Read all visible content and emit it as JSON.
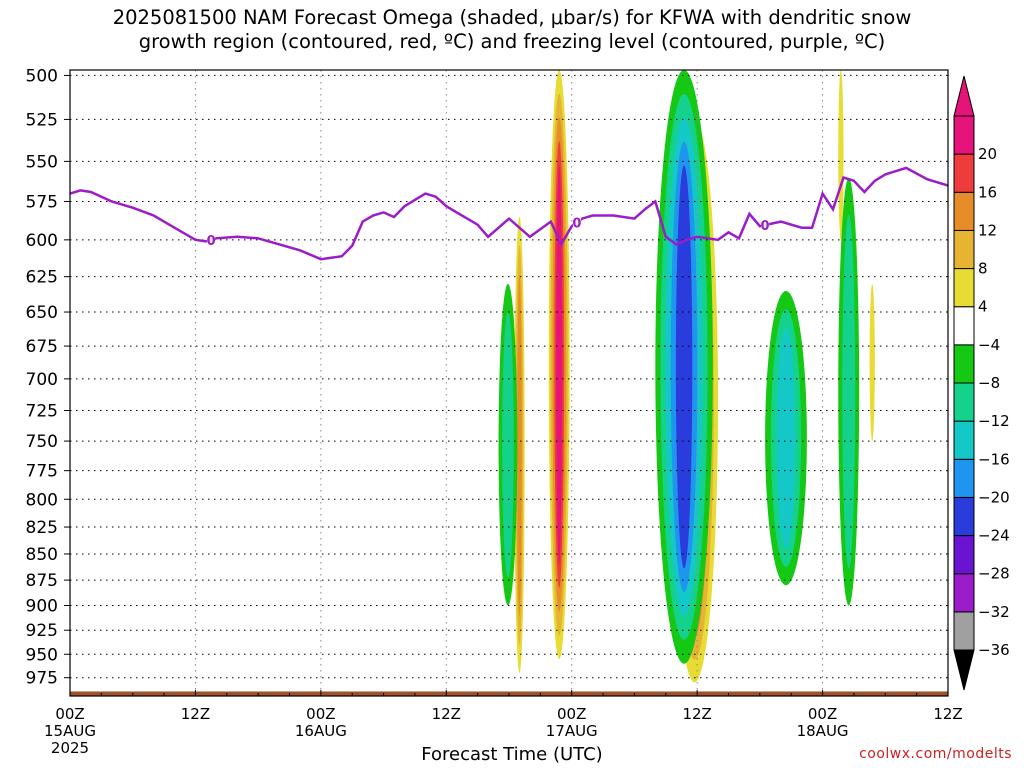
{
  "title_line1": "2025081500 NAM Forecast Omega (shaded, μbar/s) for KFWA with dendritic snow",
  "title_line2": "growth region (contoured, red, ºC) and freezing level (contoured, purple, ºC)",
  "credit": "coolwx.com/modelts",
  "chart_data": {
    "type": "heatmap",
    "title": "2025081500 NAM Forecast Omega (shaded, μbar/s) for KFWA with dendritic snow growth region (contoured, red, ºC) and freezing level (contoured, purple, ºC)",
    "xlabel": "Forecast Time (UTC)",
    "ylabel": "",
    "x_ticks": [
      {
        "hour": 0,
        "label": "00Z",
        "sub1": "15AUG",
        "sub2": "2025"
      },
      {
        "hour": 12,
        "label": "12Z",
        "sub1": "",
        "sub2": ""
      },
      {
        "hour": 24,
        "label": "00Z",
        "sub1": "16AUG",
        "sub2": ""
      },
      {
        "hour": 36,
        "label": "12Z",
        "sub1": "",
        "sub2": ""
      },
      {
        "hour": 48,
        "label": "00Z",
        "sub1": "17AUG",
        "sub2": ""
      },
      {
        "hour": 60,
        "label": "12Z",
        "sub1": "",
        "sub2": ""
      },
      {
        "hour": 72,
        "label": "00Z",
        "sub1": "18AUG",
        "sub2": ""
      },
      {
        "hour": 84,
        "label": "12Z",
        "sub1": "",
        "sub2": ""
      }
    ],
    "xlim": [
      0,
      84
    ],
    "y_ticks": [
      500,
      525,
      550,
      575,
      600,
      625,
      650,
      675,
      700,
      725,
      750,
      775,
      800,
      825,
      850,
      875,
      900,
      925,
      950,
      975
    ],
    "ylim": [
      497,
      995
    ],
    "y_scale": "log",
    "grid": true,
    "colorbar": {
      "levels": [
        -36,
        -32,
        -28,
        -24,
        -20,
        -16,
        -12,
        -8,
        -4,
        4,
        8,
        12,
        16,
        20
      ],
      "colors": [
        "#a0a0a0",
        "#9b1cc8",
        "#6a14d2",
        "#2a3cdc",
        "#1e96f0",
        "#14c8c8",
        "#14d28c",
        "#14c814",
        "#ffffff",
        "#e6dc32",
        "#e6b432",
        "#e68c28",
        "#ee3c3c",
        "#e6147a"
      ],
      "low_color": "#000000",
      "high_color": "#e6147a"
    },
    "freezing_level": {
      "color": "#9b1cc8",
      "label": "0",
      "label_hours": [
        13.5,
        48.5,
        66.5
      ],
      "hours": [
        0,
        1,
        2,
        4,
        6,
        8,
        10,
        12,
        13,
        14,
        16,
        18,
        20,
        22,
        24,
        26,
        27,
        28,
        29,
        30,
        31,
        32,
        33,
        34,
        35,
        36,
        37,
        38,
        39,
        40,
        42,
        44,
        46,
        47,
        48,
        49,
        50,
        52,
        54,
        55,
        56,
        57,
        58,
        59,
        60,
        62,
        63,
        64,
        65,
        66,
        68,
        70,
        71,
        72,
        73,
        74,
        75,
        76,
        77,
        78,
        80,
        82,
        84
      ],
      "pressure": [
        570,
        568,
        569,
        575,
        579,
        584,
        592,
        600,
        601,
        599,
        598,
        599,
        603,
        607,
        613,
        611,
        604,
        588,
        584,
        582,
        585,
        578,
        574,
        570,
        572,
        578,
        582,
        586,
        590,
        598,
        586,
        598,
        588,
        603,
        591,
        586,
        584,
        584,
        586,
        580,
        575,
        598,
        603,
        600,
        598,
        600,
        595,
        599,
        583,
        591,
        588,
        592,
        592,
        570,
        580,
        560,
        562,
        569,
        562,
        558,
        554,
        561,
        565
      ]
    },
    "snow_growth_region": "none",
    "omega_regions": [
      {
        "hour_start": 45.8,
        "hour_end": 47.8,
        "p_top": 497,
        "p_bottom": 955,
        "max_ubar_s": 24
      },
      {
        "hour_start": 57.5,
        "hour_end": 62.0,
        "p_top": 525,
        "p_bottom": 980,
        "max_ubar_s": 24
      },
      {
        "hour_start": 42.5,
        "hour_end": 43.5,
        "p_top": 585,
        "p_bottom": 970,
        "max_ubar_s": 12
      },
      {
        "hour_start": 73.5,
        "hour_end": 74.0,
        "p_top": 497,
        "p_bottom": 600,
        "max_ubar_s": 6
      },
      {
        "hour_start": 76.5,
        "hour_end": 77.0,
        "p_top": 630,
        "p_bottom": 750,
        "max_ubar_s": 6
      },
      {
        "hour_start": 41.0,
        "hour_end": 42.8,
        "p_top": 630,
        "p_bottom": 900,
        "min_ubar_s": -8
      },
      {
        "hour_start": 56.0,
        "hour_end": 61.5,
        "p_top": 497,
        "p_bottom": 960,
        "min_ubar_s": -20
      },
      {
        "hour_start": 66.5,
        "hour_end": 70.5,
        "p_top": 635,
        "p_bottom": 880,
        "min_ubar_s": -12
      },
      {
        "hour_start": 73.5,
        "hour_end": 75.5,
        "p_top": 560,
        "p_bottom": 900,
        "min_ubar_s": -8
      }
    ],
    "terrain_pressure": 990
  }
}
